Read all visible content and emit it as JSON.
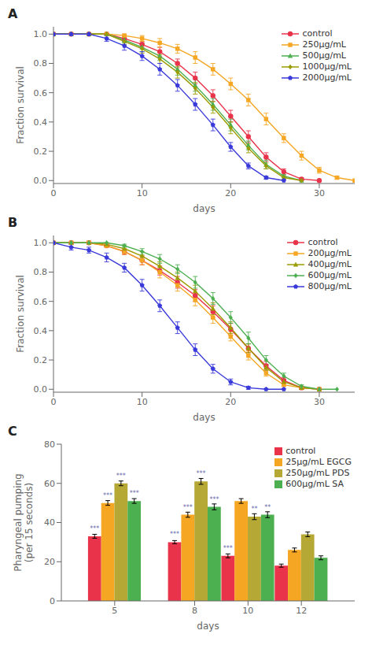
{
  "chart_data": [
    {
      "type": "line",
      "title": "A",
      "xlabel": "days",
      "ylabel": "Fraction survival",
      "xlim": [
        0,
        34
      ],
      "ylim": [
        -0.02,
        1.05
      ],
      "xticks": [
        0,
        10,
        20,
        30
      ],
      "yticks": [
        {
          "value": 0,
          "label": "0.0"
        },
        0.2,
        0.4,
        0.6,
        0.8,
        {
          "value": 1,
          "label": "1.0"
        }
      ],
      "grid": false,
      "legend": "upper right",
      "series": [
        {
          "name": "control",
          "color": "#e8334a",
          "marker": "circle",
          "line_style": "solid",
          "x": [
            0,
            2,
            4,
            6,
            8,
            10,
            12,
            14,
            16,
            18,
            20,
            22,
            24,
            26,
            28,
            30
          ],
          "values": [
            1.0,
            1.0,
            1.0,
            1.0,
            0.97,
            0.93,
            0.88,
            0.8,
            0.7,
            0.58,
            0.44,
            0.3,
            0.16,
            0.06,
            0.01,
            0.0
          ],
          "errors": [
            0,
            0,
            0,
            0,
            0.02,
            0.02,
            0.03,
            0.03,
            0.04,
            0.04,
            0.04,
            0.04,
            0.03,
            0.02,
            0.01,
            0
          ]
        },
        {
          "name": "250μg/mL",
          "color": "#f5a623",
          "marker": "square",
          "line_style": "solid",
          "x": [
            0,
            2,
            4,
            6,
            8,
            10,
            12,
            14,
            16,
            18,
            20,
            22,
            24,
            26,
            28,
            30,
            32,
            34
          ],
          "values": [
            1.0,
            1.0,
            1.0,
            1.0,
            0.99,
            0.97,
            0.94,
            0.9,
            0.84,
            0.76,
            0.66,
            0.55,
            0.42,
            0.29,
            0.17,
            0.07,
            0.02,
            0.0
          ],
          "errors": [
            0,
            0,
            0,
            0,
            0.01,
            0.02,
            0.03,
            0.03,
            0.04,
            0.04,
            0.04,
            0.04,
            0.04,
            0.03,
            0.03,
            0.02,
            0.01,
            0
          ]
        },
        {
          "name": "500μg/mL",
          "color": "#4caf50",
          "marker": "triangle",
          "line_style": "solid",
          "x": [
            0,
            2,
            4,
            6,
            8,
            10,
            12,
            14,
            16,
            18,
            20,
            22,
            24,
            26,
            28
          ],
          "values": [
            1.0,
            1.0,
            1.0,
            1.0,
            0.96,
            0.91,
            0.85,
            0.76,
            0.65,
            0.52,
            0.38,
            0.24,
            0.11,
            0.03,
            0.0
          ],
          "errors": [
            0,
            0,
            0,
            0,
            0.02,
            0.03,
            0.03,
            0.04,
            0.04,
            0.04,
            0.04,
            0.03,
            0.03,
            0.01,
            0
          ]
        },
        {
          "name": "1000μg/mL",
          "color": "#9b9b00",
          "marker": "diamond",
          "line_style": "solid",
          "x": [
            0,
            2,
            4,
            6,
            8,
            10,
            12,
            14,
            16,
            18,
            20,
            22,
            24,
            26,
            28
          ],
          "values": [
            1.0,
            1.0,
            1.0,
            1.0,
            0.95,
            0.9,
            0.83,
            0.74,
            0.63,
            0.5,
            0.36,
            0.22,
            0.1,
            0.02,
            0.0
          ],
          "errors": [
            0,
            0,
            0,
            0,
            0.02,
            0.03,
            0.03,
            0.04,
            0.04,
            0.04,
            0.04,
            0.03,
            0.02,
            0.01,
            0
          ]
        },
        {
          "name": "2000μg/mL",
          "color": "#3a3adb",
          "marker": "pentagon",
          "line_style": "solid",
          "x": [
            0,
            2,
            4,
            6,
            8,
            10,
            12,
            14,
            16,
            18,
            20,
            22,
            24,
            26
          ],
          "values": [
            1.0,
            1.0,
            1.0,
            0.97,
            0.92,
            0.85,
            0.76,
            0.65,
            0.52,
            0.38,
            0.23,
            0.1,
            0.02,
            0.0
          ],
          "errors": [
            0,
            0,
            0,
            0.02,
            0.03,
            0.03,
            0.04,
            0.04,
            0.04,
            0.04,
            0.03,
            0.02,
            0.01,
            0
          ]
        }
      ]
    },
    {
      "type": "line",
      "title": "B",
      "xlabel": "days",
      "ylabel": "Fraction survival",
      "xlim": [
        0,
        34
      ],
      "ylim": [
        -0.02,
        1.05
      ],
      "xticks": [
        0,
        10,
        20,
        30
      ],
      "yticks": [
        {
          "value": 0,
          "label": "0.0"
        },
        0.2,
        0.4,
        0.6,
        0.8,
        {
          "value": 1,
          "label": "1.0"
        }
      ],
      "grid": false,
      "legend": "upper right",
      "series": [
        {
          "name": "control",
          "color": "#e8334a",
          "marker": "circle",
          "line_style": "solid",
          "x": [
            0,
            2,
            4,
            6,
            8,
            10,
            12,
            14,
            16,
            18,
            20,
            22,
            24,
            26,
            28,
            30
          ],
          "values": [
            1.0,
            1.0,
            1.0,
            0.98,
            0.94,
            0.88,
            0.81,
            0.73,
            0.64,
            0.53,
            0.41,
            0.28,
            0.16,
            0.06,
            0.01,
            0.0
          ],
          "errors": [
            0,
            0,
            0,
            0.01,
            0.02,
            0.03,
            0.03,
            0.04,
            0.04,
            0.04,
            0.04,
            0.03,
            0.03,
            0.02,
            0.01,
            0
          ]
        },
        {
          "name": "200μg/mL",
          "color": "#f5a623",
          "marker": "square",
          "line_style": "solid",
          "x": [
            0,
            2,
            4,
            6,
            8,
            10,
            12,
            14,
            16,
            18,
            20,
            22,
            24,
            26,
            28,
            30
          ],
          "values": [
            1.0,
            1.0,
            1.0,
            0.98,
            0.94,
            0.88,
            0.8,
            0.71,
            0.61,
            0.49,
            0.36,
            0.23,
            0.11,
            0.03,
            0.01,
            0.0
          ],
          "errors": [
            0,
            0,
            0,
            0.01,
            0.02,
            0.03,
            0.04,
            0.04,
            0.04,
            0.04,
            0.03,
            0.03,
            0.02,
            0.01,
            0.01,
            0
          ]
        },
        {
          "name": "400μg/mL",
          "color": "#9b9b00",
          "marker": "triangle",
          "line_style": "solid",
          "x": [
            0,
            2,
            4,
            6,
            8,
            10,
            12,
            14,
            16,
            18,
            20,
            22,
            24,
            26,
            28,
            30
          ],
          "values": [
            1.0,
            1.0,
            1.0,
            0.99,
            0.96,
            0.91,
            0.84,
            0.76,
            0.67,
            0.55,
            0.42,
            0.28,
            0.15,
            0.05,
            0.01,
            0.0
          ],
          "errors": [
            0,
            0,
            0,
            0.01,
            0.02,
            0.03,
            0.03,
            0.04,
            0.04,
            0.04,
            0.04,
            0.03,
            0.02,
            0.01,
            0.01,
            0
          ]
        },
        {
          "name": "600μg/mL",
          "color": "#4caf50",
          "marker": "diamond",
          "line_style": "solid",
          "x": [
            0,
            2,
            4,
            6,
            8,
            10,
            12,
            14,
            16,
            18,
            20,
            22,
            24,
            26,
            28,
            30,
            32
          ],
          "values": [
            1.0,
            1.0,
            1.0,
            1.0,
            0.98,
            0.94,
            0.89,
            0.82,
            0.73,
            0.62,
            0.49,
            0.35,
            0.2,
            0.09,
            0.02,
            0.0,
            0.0
          ],
          "errors": [
            0,
            0,
            0,
            0,
            0.01,
            0.02,
            0.03,
            0.03,
            0.04,
            0.04,
            0.04,
            0.04,
            0.03,
            0.02,
            0.01,
            0,
            0
          ]
        },
        {
          "name": "800μg/mL",
          "color": "#3a3adb",
          "marker": "pentagon",
          "line_style": "solid",
          "x": [
            0,
            2,
            4,
            6,
            8,
            10,
            12,
            14,
            16,
            18,
            20,
            22,
            24,
            26
          ],
          "values": [
            1.0,
            0.97,
            0.95,
            0.9,
            0.83,
            0.71,
            0.57,
            0.42,
            0.27,
            0.14,
            0.05,
            0.01,
            0.0,
            0.0
          ],
          "errors": [
            0,
            0.02,
            0.02,
            0.03,
            0.03,
            0.04,
            0.04,
            0.04,
            0.04,
            0.03,
            0.02,
            0.01,
            0,
            0
          ]
        }
      ]
    },
    {
      "type": "bar",
      "title": "C",
      "xlabel": "days",
      "ylabel": "Pharyngeal pumping\n(per 15 seconds)",
      "x": [
        5,
        8,
        10,
        12
      ],
      "xlim": [
        3,
        14
      ],
      "xticks": [
        5,
        8,
        10,
        12
      ],
      "ylim": [
        0,
        80
      ],
      "yticks": [
        0,
        20,
        40,
        60,
        80
      ],
      "grid": false,
      "legend": "upper right",
      "series": [
        {
          "name": "control",
          "color": "#e8334a",
          "values": [
            33,
            30,
            23,
            18
          ],
          "errors": [
            1.0,
            0.8,
            1.0,
            0.8
          ],
          "annotations": [
            "***",
            "***",
            "***",
            null
          ]
        },
        {
          "name": "25μg/mL EGCG",
          "color": "#f5a623",
          "values": [
            50,
            44,
            51,
            26
          ],
          "errors": [
            1.2,
            1.3,
            1.2,
            1.0
          ],
          "annotations": [
            "***",
            "***",
            null,
            null
          ]
        },
        {
          "name": "250μg/mL PDS",
          "color": "#b5a835",
          "values": [
            60,
            61,
            43,
            34
          ],
          "errors": [
            1.2,
            1.5,
            1.5,
            1.2
          ],
          "annotations": [
            "***",
            "***",
            "**",
            null
          ]
        },
        {
          "name": "600μg/mL SA",
          "color": "#4caf50",
          "values": [
            51,
            48,
            44,
            22
          ],
          "errors": [
            1.2,
            1.5,
            1.5,
            1.0
          ],
          "annotations": [
            "***",
            "***",
            "**",
            null
          ]
        }
      ]
    }
  ]
}
